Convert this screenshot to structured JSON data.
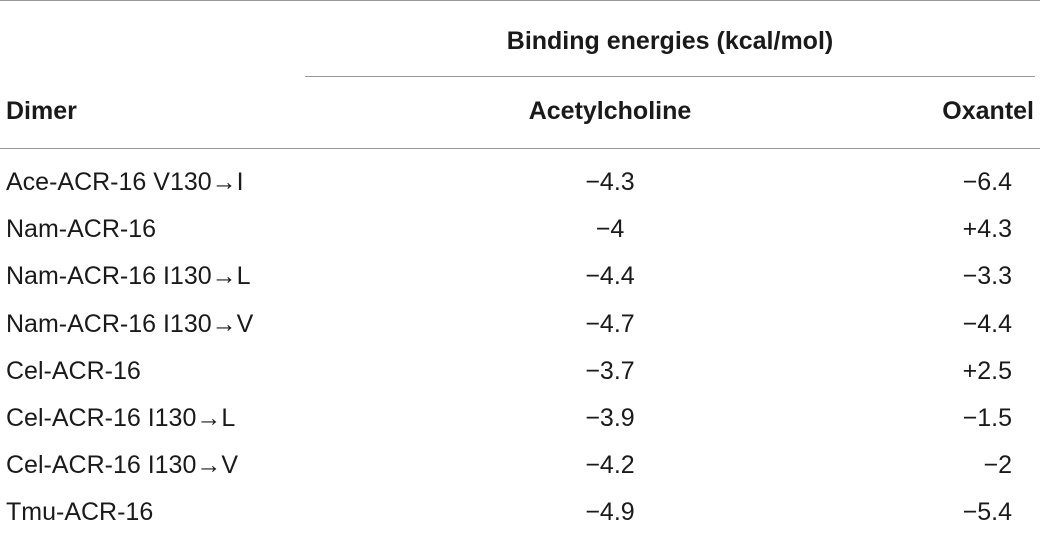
{
  "table": {
    "group_header": "Binding energies (kcal/mol)",
    "columns": [
      "Dimer",
      "Acetylcholine",
      "Oxantel"
    ],
    "rows": [
      {
        "dimer": "Ace-ACR-16 V130→I",
        "acetylcholine": "−4.3",
        "oxantel": "−6.4"
      },
      {
        "dimer": "Nam-ACR-16",
        "acetylcholine": "−4",
        "oxantel": "+4.3"
      },
      {
        "dimer": "Nam-ACR-16 I130→L",
        "acetylcholine": "−4.4",
        "oxantel": "−3.3"
      },
      {
        "dimer": "Nam-ACR-16 I130→V",
        "acetylcholine": "−4.7",
        "oxantel": "−4.4"
      },
      {
        "dimer": "Cel-ACR-16",
        "acetylcholine": "−3.7",
        "oxantel": "+2.5"
      },
      {
        "dimer": "Cel-ACR-16 I130→L",
        "acetylcholine": "−3.9",
        "oxantel": "−1.5"
      },
      {
        "dimer": "Cel-ACR-16 I130→V",
        "acetylcholine": "−4.2",
        "oxantel": "−2"
      },
      {
        "dimer": "Tmu-ACR-16",
        "acetylcholine": "−4.9",
        "oxantel": "−5.4"
      }
    ]
  }
}
